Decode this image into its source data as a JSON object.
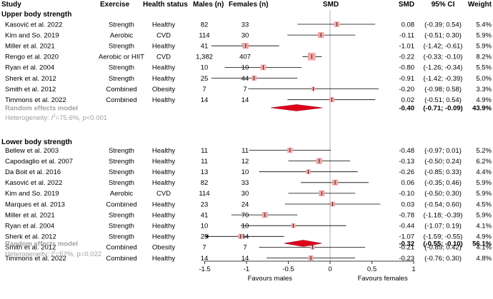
{
  "headers": {
    "study": "Study",
    "exercise": "Exercise",
    "health": "Health status",
    "males": "Males (n)",
    "females": "Females (n)",
    "smd_plot": "SMD",
    "smd": "SMD",
    "ci": "95% CI",
    "weight": "Weight"
  },
  "chart_data": {
    "type": "forest",
    "x_axis": {
      "range": [
        -1.5,
        1.0
      ],
      "ticks": [
        -1.5,
        -1,
        -0.5,
        0,
        0.5,
        1
      ],
      "tick_labels": [
        "-1.5",
        "-1",
        "-0.5",
        "0",
        "0.5",
        "1"
      ],
      "left_label": "Favours males",
      "right_label": "Favours females"
    },
    "groups": [
      {
        "title": "Upper body strength",
        "studies": [
          {
            "study": "Kasović et al. 2022",
            "exercise": "Strength",
            "health": "Healthy",
            "males": "82",
            "females": "33",
            "smd": 0.08,
            "lo": -0.39,
            "hi": 0.54,
            "smd_text": "0.08",
            "ci_text": "(-0.39; 0.54)",
            "weight": "5.4%",
            "w": 5.4
          },
          {
            "study": "Kim and So. 2019",
            "exercise": "Aerobic",
            "health": "CVD",
            "males": "114",
            "females": "30",
            "smd": -0.11,
            "lo": -0.51,
            "hi": 0.3,
            "smd_text": "-0.11",
            "ci_text": "(-0.51; 0.30)",
            "weight": "5.9%",
            "w": 5.9
          },
          {
            "study": "Miller et al. 2021",
            "exercise": "Strength",
            "health": "Healthy",
            "males": "41",
            "females": "70",
            "smd": -1.01,
            "lo": -1.42,
            "hi": -0.61,
            "smd_text": "-1.01",
            "ci_text": "(-1.42; -0.61)",
            "weight": "5.9%",
            "w": 5.9
          },
          {
            "study": "Rengo et al. 2020",
            "exercise": "Aerobic or HIIT",
            "health": "CVD",
            "males": "1,382",
            "females": "407",
            "smd": -0.22,
            "lo": -0.33,
            "hi": -0.1,
            "smd_text": "-0.22",
            "ci_text": "(-0.33; -0.10)",
            "weight": "8.2%",
            "w": 8.2
          },
          {
            "study": "Ryan et al. 2004",
            "exercise": "Strength",
            "health": "Healthy",
            "males": "10",
            "females": "10",
            "smd": -0.8,
            "lo": -1.26,
            "hi": -0.34,
            "smd_text": "-0.80",
            "ci_text": "(-1.26; -0.34)",
            "weight": "5.5%",
            "w": 5.5
          },
          {
            "study": "Sherk et al. 2012",
            "exercise": "Strength",
            "health": "Healthy",
            "males": "25",
            "females": "44",
            "smd": -0.91,
            "lo": -1.42,
            "hi": -0.39,
            "smd_text": "-0.91",
            "ci_text": "(-1.42; -0.39)",
            "weight": "5.0%",
            "w": 5.0
          },
          {
            "study": "Smith et al. 2012",
            "exercise": "Combined",
            "health": "Obesity",
            "males": "7",
            "females": "7",
            "smd": -0.2,
            "lo": -0.98,
            "hi": 0.58,
            "smd_text": "-0.20",
            "ci_text": "(-0.98; 0.58)",
            "weight": "3.3%",
            "w": 3.3
          },
          {
            "study": "Timmons et al. 2022",
            "exercise": "Combined",
            "health": "Healthy",
            "males": "14",
            "females": "14",
            "smd": 0.02,
            "lo": -0.51,
            "hi": 0.54,
            "smd_text": "0.02",
            "ci_text": "(-0.51; 0.54)",
            "weight": "4.9%",
            "w": 4.9
          }
        ],
        "pooled": {
          "label": "Random effects model",
          "smd": -0.4,
          "lo": -0.71,
          "hi": -0.09,
          "smd_text": "-0.40",
          "ci_text": "(-0.71; -0.09)",
          "weight": "43.9%"
        },
        "heterogeneity": {
          "prefix": "Heterogeneity: ",
          "i2_symbol": "I",
          "i2_sup": "2",
          "value": "=75.6%, p<0.001"
        }
      },
      {
        "title": "Lower body strength",
        "studies": [
          {
            "study": "Bellew et al. 2003",
            "exercise": "Strength",
            "health": "Healthy",
            "males": "11",
            "females": "11",
            "smd": -0.48,
            "lo": -0.97,
            "hi": 0.01,
            "smd_text": "-0.48",
            "ci_text": "(-0.97; 0.01)",
            "weight": "5.2%",
            "w": 5.2
          },
          {
            "study": "Capodaglio et al. 2007",
            "exercise": "Strength",
            "health": "Healthy",
            "males": "11",
            "females": "12",
            "smd": -0.13,
            "lo": -0.5,
            "hi": 0.24,
            "smd_text": "-0.13",
            "ci_text": "(-0.50; 0.24)",
            "weight": "6.2%",
            "w": 6.2
          },
          {
            "study": "Da Boit et al. 2016",
            "exercise": "Strength",
            "health": "Healthy",
            "males": "13",
            "females": "10",
            "smd": -0.26,
            "lo": -0.85,
            "hi": 0.33,
            "smd_text": "-0.26",
            "ci_text": "(-0.85; 0.33)",
            "weight": "4.4%",
            "w": 4.4
          },
          {
            "study": "Kasović et al. 2022",
            "exercise": "Strength",
            "health": "Healthy",
            "males": "82",
            "females": "33",
            "smd": 0.06,
            "lo": -0.35,
            "hi": 0.46,
            "smd_text": "0.06",
            "ci_text": "(-0.35; 0.46)",
            "weight": "5.9%",
            "w": 5.9
          },
          {
            "study": "Kim and So. 2019",
            "exercise": "Aerobic",
            "health": "CVD",
            "males": "114",
            "females": "30",
            "smd": -0.1,
            "lo": -0.5,
            "hi": 0.3,
            "smd_text": "-0.10",
            "ci_text": "(-0.50; 0.30)",
            "weight": "5.9%",
            "w": 5.9
          },
          {
            "study": "Marques et al. 2013",
            "exercise": "Combined",
            "health": "Healthy",
            "males": "23",
            "females": "24",
            "smd": 0.03,
            "lo": -0.54,
            "hi": 0.6,
            "smd_text": "0.03",
            "ci_text": "(-0.54; 0.60)",
            "weight": "4.5%",
            "w": 4.5
          },
          {
            "study": "Miller et al. 2021",
            "exercise": "Strength",
            "health": "Healthy",
            "males": "41",
            "females": "70",
            "smd": -0.78,
            "lo": -1.18,
            "hi": -0.39,
            "smd_text": "-0.78",
            "ci_text": "(-1.18; -0.39)",
            "weight": "5.9%",
            "w": 5.9
          },
          {
            "study": "Ryan et al. 2004",
            "exercise": "Strength",
            "health": "Healthy",
            "males": "10",
            "females": "10",
            "smd": -0.44,
            "lo": -1.07,
            "hi": 0.19,
            "smd_text": "-0.44",
            "ci_text": "(-1.07; 0.19)",
            "weight": "4.1%",
            "w": 4.1
          },
          {
            "study": "Sherk et al. 2012",
            "exercise": "Strength",
            "health": "Healthy",
            "males": "25",
            "females": "44",
            "smd": -1.07,
            "lo": -1.59,
            "hi": -0.55,
            "smd_text": "-1.07",
            "ci_text": "(-1.59; -0.55)",
            "weight": "4.9%",
            "w": 4.9
          },
          {
            "study": "Smith et al. 2012",
            "exercise": "Combined",
            "health": "Obesity",
            "males": "7",
            "females": "7",
            "smd": -0.21,
            "lo": -0.85,
            "hi": 0.42,
            "smd_text": "-0.21",
            "ci_text": "(-0.85; 0.42)",
            "weight": "4.1%",
            "w": 4.1
          },
          {
            "study": "Timmons et al. 2022",
            "exercise": "Combined",
            "health": "Healthy",
            "males": "14",
            "females": "14",
            "smd": -0.23,
            "lo": -0.76,
            "hi": 0.3,
            "smd_text": "-0.23",
            "ci_text": "(-0.76; 0.30)",
            "weight": "4.8%",
            "w": 4.8
          }
        ],
        "pooled": {
          "label": "Random effects model",
          "smd": -0.32,
          "lo": -0.55,
          "hi": -0.1,
          "smd_text": "-0.32",
          "ci_text": "(-0.55; -0.10)",
          "weight": "56.1%"
        },
        "heterogeneity": {
          "prefix": "Heterogeneity: ",
          "i2_symbol": "I",
          "i2_sup": "2",
          "value": "=52%, p=0.022"
        }
      }
    ]
  },
  "colors": {
    "box": "#f2a7a7",
    "diamond": "#e0001b",
    "diamond_stroke": "#8a0010",
    "muted": "#a0a0a0",
    "line": "#000000",
    "ref_line": "#b0b0b0"
  }
}
